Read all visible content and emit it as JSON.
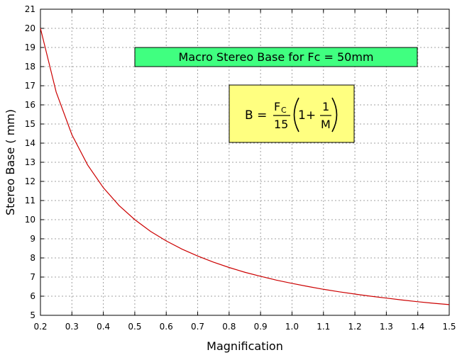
{
  "chart_data": {
    "type": "line",
    "title": "Macro Stereo Base for Fc = 50mm",
    "xlabel": "Magnification",
    "ylabel": "Stereo Base ( mm)",
    "xlim": [
      0.2,
      1.5
    ],
    "ylim": [
      5,
      21
    ],
    "x_ticks": [
      "0.2",
      "0.3",
      "0.4",
      "0.5",
      "0.6",
      "0.7",
      "0.8",
      "0.9",
      "1.0",
      "1.1",
      "1.2",
      "1.3",
      "1.4",
      "1.5"
    ],
    "y_ticks": [
      "5",
      "6",
      "7",
      "8",
      "9",
      "10",
      "11",
      "12",
      "13",
      "14",
      "15",
      "16",
      "17",
      "18",
      "19",
      "20",
      "21"
    ],
    "grid": true,
    "formula": {
      "lhs": "B =",
      "num": "F",
      "num_sub": "C",
      "den": "15",
      "one": "1+",
      "frac_num": "1",
      "frac_den": "M"
    },
    "series": [
      {
        "color": "#cc0000",
        "x": [
          0.2,
          0.25,
          0.3,
          0.35,
          0.4,
          0.45,
          0.5,
          0.55,
          0.6,
          0.65,
          0.7,
          0.75,
          0.8,
          0.85,
          0.9,
          0.95,
          1.0,
          1.05,
          1.1,
          1.15,
          1.2,
          1.25,
          1.3,
          1.35,
          1.4,
          1.45,
          1.5
        ],
        "y": [
          20.0,
          16.67,
          14.44,
          12.86,
          11.67,
          10.74,
          10.0,
          9.39,
          8.89,
          8.46,
          8.1,
          7.78,
          7.5,
          7.25,
          7.04,
          6.84,
          6.67,
          6.51,
          6.36,
          6.23,
          6.11,
          6.0,
          5.9,
          5.8,
          5.71,
          5.63,
          5.56
        ]
      }
    ]
  }
}
